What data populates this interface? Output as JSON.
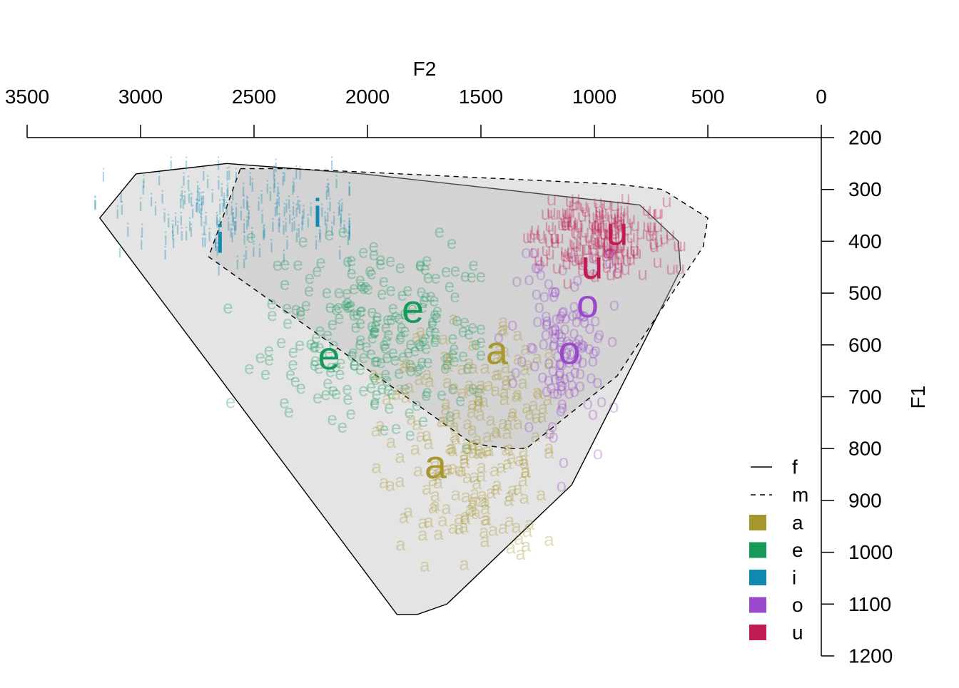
{
  "chart_data": {
    "type": "scatter",
    "title": "",
    "xlabel": "F2",
    "ylabel": "F1",
    "x_reversed": true,
    "y_reversed": true,
    "xlim": [
      3500,
      0
    ],
    "ylim": [
      200,
      1200
    ],
    "x_ticks": [
      3500,
      3000,
      2500,
      2000,
      1500,
      1000,
      500,
      0
    ],
    "y_ticks": [
      200,
      300,
      400,
      500,
      600,
      700,
      800,
      900,
      1000,
      1100,
      1200
    ],
    "grid": false,
    "legend_position": "bottom-right",
    "legend": {
      "lines": [
        {
          "key": "f",
          "label": "f",
          "style": "solid"
        },
        {
          "key": "m",
          "label": "m",
          "style": "dashed"
        }
      ],
      "vowels": [
        {
          "key": "a",
          "label": "a",
          "color": "#a8962e"
        },
        {
          "key": "e",
          "label": "e",
          "color": "#159a5a"
        },
        {
          "key": "i",
          "label": "i",
          "color": "#1089b0"
        },
        {
          "key": "o",
          "label": "o",
          "color": "#9a48cc"
        },
        {
          "key": "u",
          "label": "u",
          "color": "#c21b55"
        }
      ]
    },
    "hulls": [
      {
        "name": "f",
        "style": "solid",
        "points": [
          [
            3180,
            355
          ],
          [
            3020,
            270
          ],
          [
            2620,
            250
          ],
          [
            2020,
            270
          ],
          [
            800,
            330
          ],
          [
            630,
            400
          ],
          [
            620,
            455
          ],
          [
            1100,
            870
          ],
          [
            1650,
            1100
          ],
          [
            1780,
            1120
          ],
          [
            1870,
            1120
          ],
          [
            3180,
            355
          ]
        ]
      },
      {
        "name": "m",
        "style": "dashed",
        "points": [
          [
            2560,
            260
          ],
          [
            2330,
            260
          ],
          [
            900,
            290
          ],
          [
            700,
            300
          ],
          [
            500,
            355
          ],
          [
            520,
            410
          ],
          [
            900,
            660
          ],
          [
            1300,
            800
          ],
          [
            1380,
            800
          ],
          [
            1540,
            790
          ],
          [
            2700,
            430
          ],
          [
            2560,
            260
          ]
        ]
      }
    ],
    "centroids": [
      {
        "vowel": "i",
        "group": "f",
        "label": "i",
        "f2": 2650,
        "f1": 395
      },
      {
        "vowel": "i",
        "group": "m",
        "label": "i",
        "f2": 2220,
        "f1": 345
      },
      {
        "vowel": "e",
        "group": "f",
        "label": "e",
        "f2": 2170,
        "f1": 620
      },
      {
        "vowel": "e",
        "group": "m",
        "label": "e",
        "f2": 1800,
        "f1": 530
      },
      {
        "vowel": "a",
        "group": "f",
        "label": "a",
        "f2": 1700,
        "f1": 830
      },
      {
        "vowel": "a",
        "group": "m",
        "label": "a",
        "f2": 1430,
        "f1": 610
      },
      {
        "vowel": "o",
        "group": "f",
        "label": "o",
        "f2": 1110,
        "f1": 610
      },
      {
        "vowel": "o",
        "group": "m",
        "label": "o",
        "f2": 1030,
        "f1": 520
      },
      {
        "vowel": "u",
        "group": "f",
        "label": "u",
        "f2": 900,
        "f1": 380
      },
      {
        "vowel": "u",
        "group": "m",
        "label": "u",
        "f2": 1010,
        "f1": 445
      }
    ],
    "clouds": [
      {
        "vowel": "i",
        "label": "i",
        "f2_center": 2450,
        "f1_center": 345,
        "f2_spread": 330,
        "f1_spread": 55,
        "n": 150,
        "f2_min": 2080,
        "f2_max": 3200,
        "f1_min": 250,
        "f1_max": 490
      },
      {
        "vowel": "i",
        "label": "i",
        "f2_center": 2900,
        "f1_center": 330,
        "f2_spread": 220,
        "f1_spread": 45,
        "n": 40,
        "f2_min": 2080,
        "f2_max": 3200,
        "f1_min": 250,
        "f1_max": 490
      },
      {
        "vowel": "e",
        "label": "e",
        "f2_center": 1950,
        "f1_center": 570,
        "f2_spread": 330,
        "f1_spread": 110,
        "n": 240,
        "f2_min": 1500,
        "f2_max": 2800,
        "f1_min": 380,
        "f1_max": 880
      },
      {
        "vowel": "a",
        "label": "a",
        "f2_center": 1550,
        "f1_center": 780,
        "f2_spread": 230,
        "f1_spread": 155,
        "n": 220,
        "f2_min": 1200,
        "f2_max": 2100,
        "f1_min": 390,
        "f1_max": 1120
      },
      {
        "vowel": "o",
        "label": "o",
        "f2_center": 1130,
        "f1_center": 600,
        "f2_spread": 140,
        "f1_spread": 115,
        "n": 140,
        "f2_min": 900,
        "f2_max": 1500,
        "f1_min": 420,
        "f1_max": 880
      },
      {
        "vowel": "u",
        "label": "u",
        "f2_center": 980,
        "f1_center": 390,
        "f2_spread": 180,
        "f1_spread": 45,
        "n": 190,
        "f2_min": 550,
        "f2_max": 1380,
        "f1_min": 280,
        "f1_max": 540
      }
    ]
  }
}
